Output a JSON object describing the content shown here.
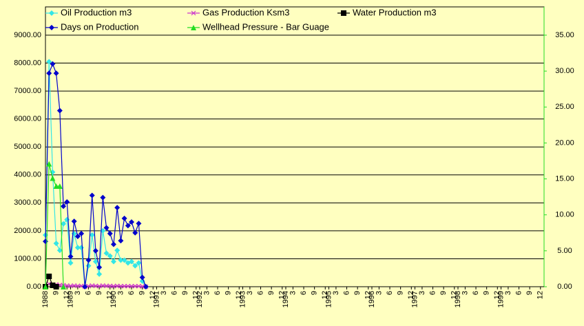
{
  "chart_data": {
    "type": "line",
    "x": [
      "1988-06",
      "1988-07",
      "1988-08",
      "1988-09",
      "1988-10",
      "1988-11",
      "1988-12",
      "1989-01",
      "1989-02",
      "1989-03",
      "1989-04",
      "1989-05",
      "1989-06",
      "1989-07",
      "1989-08",
      "1989-09",
      "1989-10",
      "1989-11",
      "1989-12",
      "1990-01",
      "1990-02",
      "1990-03",
      "1990-04",
      "1990-05",
      "1990-06",
      "1990-07",
      "1990-08",
      "1990-09",
      "1990-10"
    ],
    "series": [
      {
        "name": "Oil Production m3",
        "color": "#33e6e6",
        "marker": "diamond",
        "axis": "y",
        "values": [
          1850,
          8050,
          4100,
          1550,
          1300,
          2250,
          2400,
          850,
          1900,
          1400,
          1400,
          0,
          750,
          1850,
          900,
          450,
          2000,
          1200,
          1100,
          900,
          1300,
          950,
          950,
          850,
          900,
          750,
          850,
          200,
          0
        ]
      },
      {
        "name": "Gas Production Ksm3",
        "color": "#cc33cc",
        "marker": "cross",
        "axis": "y",
        "values": [
          0,
          100,
          50,
          80,
          60,
          50,
          40,
          30,
          40,
          30,
          30,
          0,
          20,
          40,
          30,
          20,
          40,
          30,
          30,
          20,
          30,
          20,
          20,
          20,
          20,
          20,
          20,
          10,
          0
        ]
      },
      {
        "name": "Water Production m3",
        "color": "#000000",
        "marker": "square",
        "axis": "y",
        "values": [
          0,
          370,
          50,
          0,
          null,
          null,
          null,
          null,
          null,
          null,
          null,
          null,
          null,
          null,
          null,
          null,
          null,
          null,
          null,
          null,
          null,
          null,
          null,
          null,
          null,
          null,
          null,
          null,
          null
        ]
      },
      {
        "name": "Days on Production",
        "color": "#0000cc",
        "marker": "diamond",
        "axis": "y2",
        "values": [
          6.3,
          29.7,
          31.0,
          29.7,
          24.5,
          11.2,
          11.8,
          4.2,
          9.1,
          7.0,
          7.4,
          0,
          3.7,
          12.7,
          5.0,
          2.7,
          12.4,
          8.2,
          7.4,
          5.9,
          11.0,
          6.4,
          9.5,
          8.5,
          9.0,
          7.5,
          8.8,
          1.3,
          0
        ]
      },
      {
        "name": "Wellhead Pressure - Bar Guage",
        "color": "#22dd22",
        "marker": "triangle",
        "axis": "y2",
        "values": [
          0,
          17.1,
          15.1,
          14.0,
          14.0,
          0,
          null,
          null,
          null,
          null,
          null,
          null,
          null,
          null,
          null,
          null,
          null,
          null,
          null,
          null,
          null,
          null,
          null,
          null,
          null,
          null,
          null,
          null,
          null
        ]
      }
    ],
    "xlim": [
      "1988-06",
      "2000-01"
    ],
    "xticks": [
      {
        "value": "1988-06",
        "label": "1988"
      },
      {
        "value": "1988-09",
        "label": "9"
      },
      {
        "value": "1988-12",
        "label": "12"
      },
      {
        "value": "1989-01",
        "label": "1989"
      },
      {
        "value": "1989-03",
        "label": "3"
      },
      {
        "value": "1989-06",
        "label": "6"
      },
      {
        "value": "1989-09",
        "label": "9"
      },
      {
        "value": "1989-12",
        "label": "12"
      },
      {
        "value": "1990-01",
        "label": "1990"
      },
      {
        "value": "1990-03",
        "label": "3"
      },
      {
        "value": "1990-06",
        "label": "6"
      },
      {
        "value": "1990-09",
        "label": "9"
      },
      {
        "value": "1990-12",
        "label": "12"
      },
      {
        "value": "1991-01",
        "label": "1991"
      },
      {
        "value": "1991-03",
        "label": "3"
      },
      {
        "value": "1991-06",
        "label": "6"
      },
      {
        "value": "1991-09",
        "label": "9"
      },
      {
        "value": "1991-12",
        "label": "12"
      },
      {
        "value": "1992-01",
        "label": "1992"
      },
      {
        "value": "1992-03",
        "label": "3"
      },
      {
        "value": "1992-06",
        "label": "6"
      },
      {
        "value": "1992-09",
        "label": "9"
      },
      {
        "value": "1992-12",
        "label": "12"
      },
      {
        "value": "1993-01",
        "label": "1993"
      },
      {
        "value": "1993-03",
        "label": "3"
      },
      {
        "value": "1993-06",
        "label": "6"
      },
      {
        "value": "1993-09",
        "label": "9"
      },
      {
        "value": "1993-12",
        "label": "12"
      },
      {
        "value": "1994-01",
        "label": "1994"
      },
      {
        "value": "1994-03",
        "label": "3"
      },
      {
        "value": "1994-06",
        "label": "6"
      },
      {
        "value": "1994-09",
        "label": "9"
      },
      {
        "value": "1994-12",
        "label": "12"
      },
      {
        "value": "1995-01",
        "label": "1995"
      },
      {
        "value": "1995-03",
        "label": "3"
      },
      {
        "value": "1995-06",
        "label": "6"
      },
      {
        "value": "1995-09",
        "label": "9"
      },
      {
        "value": "1995-12",
        "label": "12"
      },
      {
        "value": "1996-01",
        "label": "1996"
      },
      {
        "value": "1996-03",
        "label": "3"
      },
      {
        "value": "1996-06",
        "label": "6"
      },
      {
        "value": "1996-09",
        "label": "9"
      },
      {
        "value": "1996-12",
        "label": "12"
      },
      {
        "value": "1997-01",
        "label": "1997"
      },
      {
        "value": "1997-03",
        "label": "3"
      },
      {
        "value": "1997-06",
        "label": "6"
      },
      {
        "value": "1997-09",
        "label": "9"
      },
      {
        "value": "1997-12",
        "label": "12"
      },
      {
        "value": "1998-01",
        "label": "1998"
      },
      {
        "value": "1998-03",
        "label": "3"
      },
      {
        "value": "1998-06",
        "label": "6"
      },
      {
        "value": "1998-09",
        "label": "9"
      },
      {
        "value": "1998-12",
        "label": "12"
      },
      {
        "value": "1999-01",
        "label": "1999"
      },
      {
        "value": "1999-03",
        "label": "3"
      },
      {
        "value": "1999-06",
        "label": "6"
      },
      {
        "value": "1999-09",
        "label": "9"
      },
      {
        "value": "1999-12",
        "label": "12"
      }
    ],
    "ylim": [
      0,
      9000
    ],
    "yticks": [
      {
        "value": 0,
        "label": "0.00"
      },
      {
        "value": 1000,
        "label": "1000.00"
      },
      {
        "value": 2000,
        "label": "2000.00"
      },
      {
        "value": 3000,
        "label": "3000.00"
      },
      {
        "value": 4000,
        "label": "4000.00"
      },
      {
        "value": 5000,
        "label": "5000.00"
      },
      {
        "value": 6000,
        "label": "6000.00"
      },
      {
        "value": 7000,
        "label": "7000.00"
      },
      {
        "value": 8000,
        "label": "8000.00"
      },
      {
        "value": 9000,
        "label": "9000.00"
      }
    ],
    "y2lim": [
      0,
      35
    ],
    "y2ticks": [
      {
        "value": 0,
        "label": "0.00"
      },
      {
        "value": 5,
        "label": "5.00"
      },
      {
        "value": 10,
        "label": "10.00"
      },
      {
        "value": 15,
        "label": "15.00"
      },
      {
        "value": 20,
        "label": "20.00"
      },
      {
        "value": 25,
        "label": "25.00"
      },
      {
        "value": 30,
        "label": "30.00"
      },
      {
        "value": 35,
        "label": "35.00"
      }
    ],
    "y2_color": "#0000cc",
    "grid": true,
    "legend": "top-left"
  }
}
